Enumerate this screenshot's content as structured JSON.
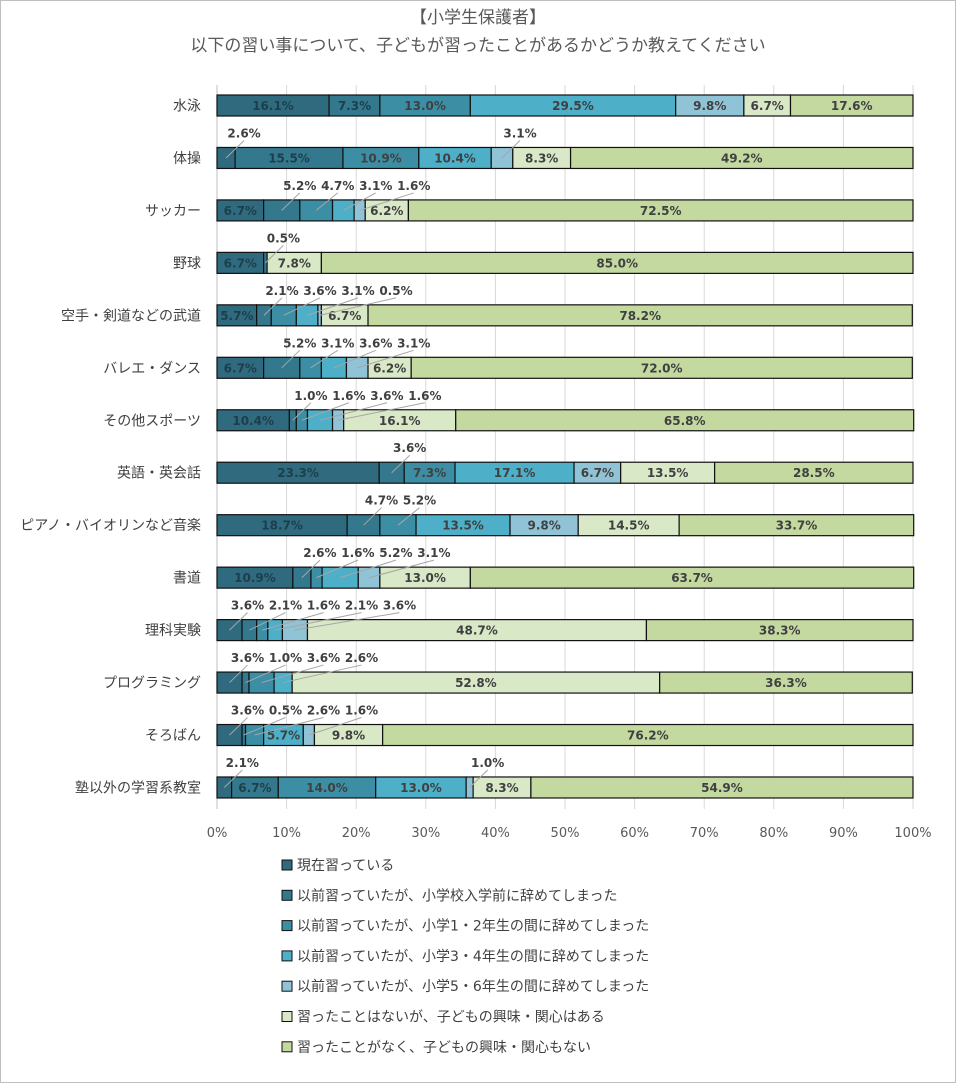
{
  "chart_data": {
    "type": "bar",
    "orientation": "horizontal",
    "stacked": "percent",
    "title": "【小学生保護者】",
    "subtitle": "以下の習い事について、子どもが習ったことがあるかどうか教えてください",
    "categories": [
      "水泳",
      "体操",
      "サッカー",
      "野球",
      "空手・剣道などの武道",
      "バレエ・ダンス",
      "その他スポーツ",
      "英語・英会話",
      "ピアノ・バイオリンなど音楽",
      "書道",
      "理科実験",
      "プログラミング",
      "そろばん",
      "塾以外の学習系教室"
    ],
    "series": [
      {
        "name": "現在習っている",
        "color": "#2f6a7e",
        "values": [
          16.1,
          2.6,
          6.7,
          6.7,
          5.7,
          6.7,
          10.4,
          23.3,
          18.7,
          10.9,
          3.6,
          3.6,
          3.6,
          2.1
        ]
      },
      {
        "name": "以前習っていたが、小学校入学前に辞めてしまった",
        "color": "#34788d",
        "values": [
          7.3,
          15.5,
          5.2,
          0.5,
          2.1,
          5.2,
          1.0,
          3.6,
          4.7,
          2.6,
          2.1,
          1.0,
          0.5,
          6.7
        ]
      },
      {
        "name": "以前習っていたが、小学1・2年生の間に辞めてしまった",
        "color": "#3c8ea4",
        "values": [
          13.0,
          10.9,
          4.7,
          0,
          3.6,
          3.1,
          1.6,
          7.3,
          5.2,
          1.6,
          1.6,
          3.6,
          2.6,
          14.0
        ]
      },
      {
        "name": "以前習っていたが、小学3・4年生の間に辞めてしまった",
        "color": "#4dafc8",
        "values": [
          29.5,
          10.4,
          3.1,
          0,
          3.1,
          3.6,
          3.6,
          17.1,
          13.5,
          5.2,
          2.1,
          2.6,
          5.7,
          13.0
        ]
      },
      {
        "name": "以前習っていたが、小学5・6年生の間に辞めてしまった",
        "color": "#91c3d7",
        "values": [
          9.8,
          3.1,
          1.6,
          0,
          0.5,
          3.1,
          1.6,
          6.7,
          9.8,
          3.1,
          3.6,
          0,
          1.6,
          1.0
        ]
      },
      {
        "name": "習ったことはないが、子どもの興味・関心はある",
        "color": "#d9e8c6",
        "values": [
          6.7,
          8.3,
          6.2,
          7.8,
          6.7,
          6.2,
          16.1,
          13.5,
          14.5,
          13.0,
          48.7,
          52.8,
          9.8,
          8.3
        ]
      },
      {
        "name": "習ったことがなく、子どもの興味・関心もない",
        "color": "#c3d9a0",
        "values": [
          17.6,
          49.2,
          72.5,
          85.0,
          78.2,
          72.0,
          65.8,
          28.5,
          33.7,
          63.7,
          38.3,
          36.3,
          76.2,
          54.9
        ]
      }
    ],
    "xlim": [
      0,
      100
    ],
    "x_ticks": [
      "0%",
      "10%",
      "20%",
      "30%",
      "40%",
      "50%",
      "60%",
      "70%",
      "80%",
      "90%",
      "100%"
    ],
    "legend_position": "bottom",
    "grid": true
  }
}
